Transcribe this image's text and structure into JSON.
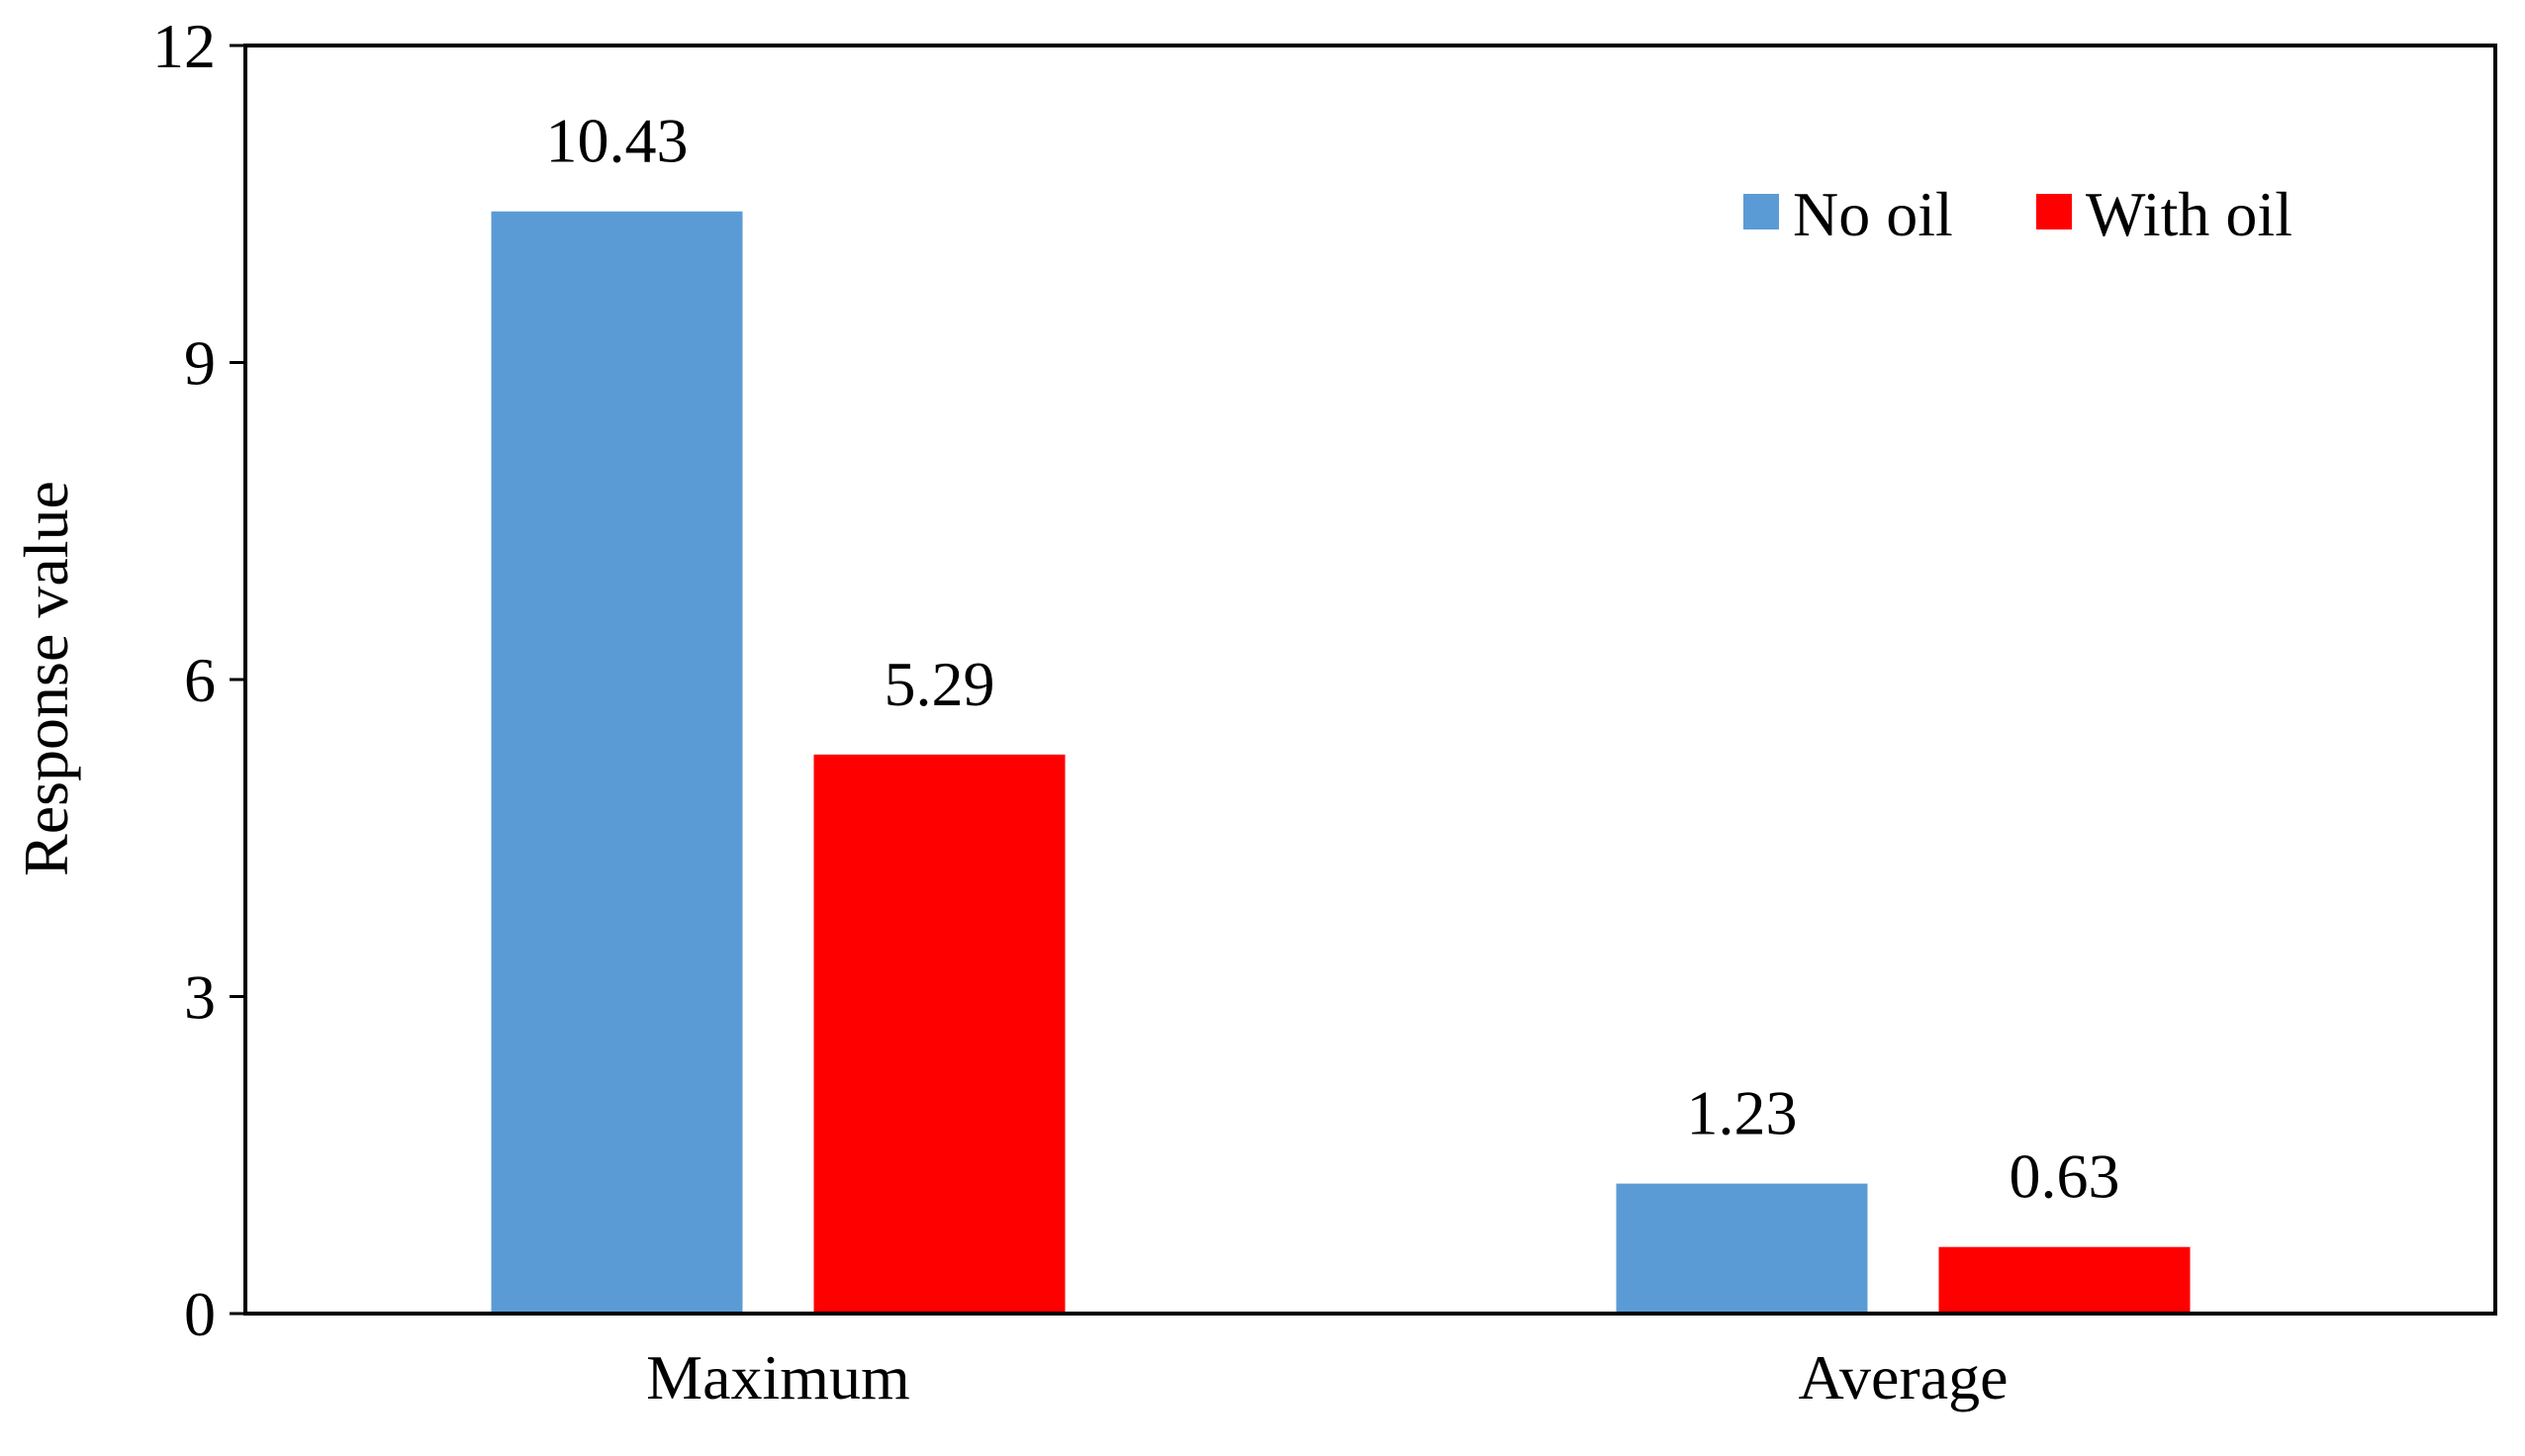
{
  "chart_data": {
    "type": "bar",
    "categories": [
      "Maximum",
      "Average"
    ],
    "series": [
      {
        "name": "No oil",
        "color": "#5b9bd5",
        "values": [
          10.43,
          1.23
        ],
        "labels": [
          "10.43",
          "1.23"
        ]
      },
      {
        "name": "With oil",
        "color": "#ff0000",
        "values": [
          5.29,
          0.63
        ],
        "labels": [
          "5.29",
          "0.63"
        ]
      }
    ],
    "title": "",
    "xlabel": "",
    "ylabel": "Response value",
    "ylim": [
      0,
      12
    ],
    "yticks": [
      0,
      3,
      6,
      9,
      12
    ],
    "ytick_labels": [
      "0",
      "3",
      "6",
      "9",
      "12"
    ],
    "grid": false,
    "legend_position": "top-right"
  }
}
